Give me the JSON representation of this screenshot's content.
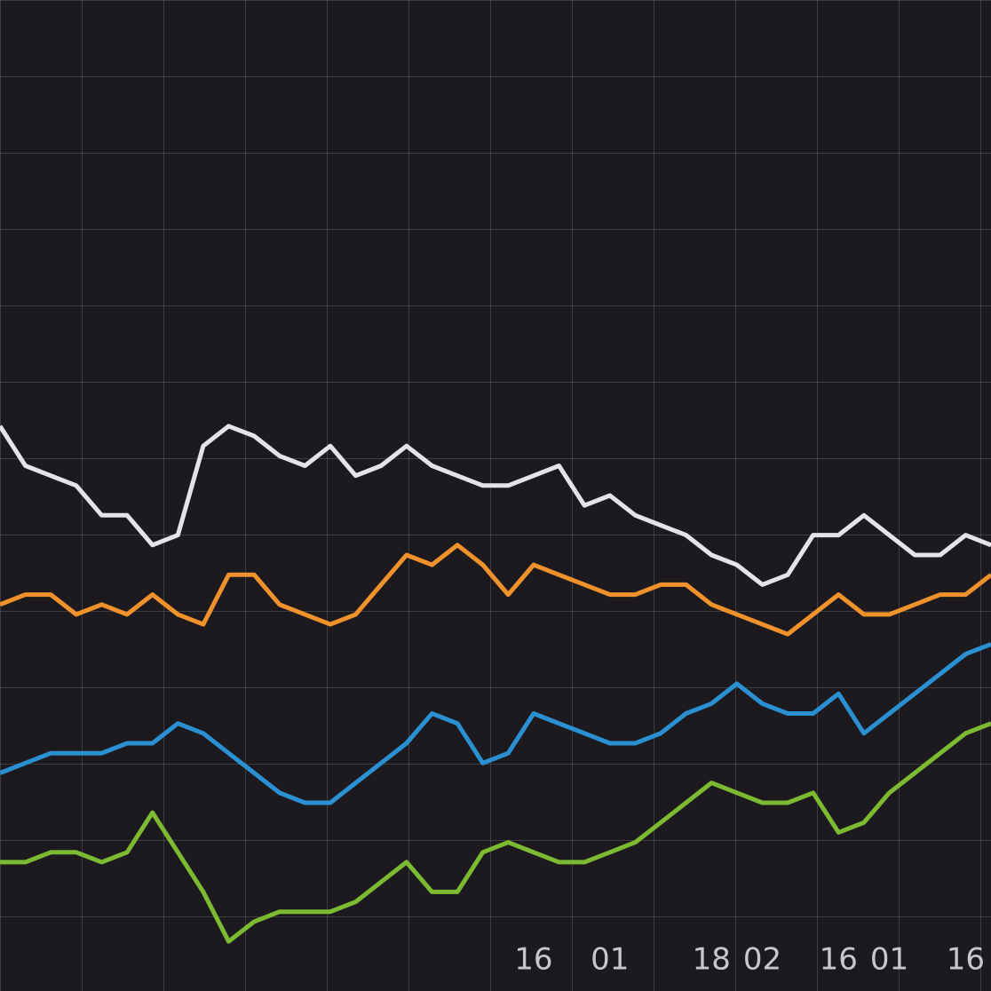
{
  "chart_data": {
    "type": "line",
    "categories": [
      null,
      null,
      null,
      null,
      null,
      null,
      null,
      null,
      null,
      null,
      null,
      null,
      null,
      null,
      null,
      null,
      null,
      null,
      null,
      null,
      null,
      "16",
      null,
      null,
      "01",
      null,
      null,
      null,
      "18",
      null,
      "02",
      null,
      null,
      "16",
      null,
      "01",
      null,
      null,
      "16",
      null
    ],
    "series": [
      {
        "color": "#e6e2ec",
        "values": [
          57,
          53,
          52,
          51,
          48,
          48,
          45,
          46,
          55,
          57,
          56,
          54,
          53,
          55,
          52,
          53,
          55,
          53,
          52,
          51,
          51,
          52,
          53,
          49,
          50,
          48,
          47,
          46,
          44,
          43,
          41,
          42,
          46,
          46,
          48,
          46,
          44,
          44,
          46,
          45
        ]
      },
      {
        "color": "#f0922c",
        "values": [
          39,
          40,
          40,
          38,
          39,
          38,
          40,
          38,
          37,
          42,
          42,
          39,
          38,
          37,
          38,
          41,
          44,
          43,
          45,
          43,
          40,
          43,
          42,
          41,
          40,
          40,
          41,
          41,
          39,
          38,
          37,
          36,
          38,
          40,
          38,
          38,
          39,
          40,
          40,
          42
        ]
      },
      {
        "color": "#2a90d2",
        "values": [
          22,
          23,
          24,
          24,
          24,
          25,
          25,
          27,
          26,
          24,
          22,
          20,
          19,
          19,
          21,
          23,
          25,
          28,
          27,
          23,
          24,
          28,
          27,
          26,
          25,
          25,
          26,
          28,
          29,
          31,
          29,
          28,
          28,
          30,
          26,
          28,
          30,
          32,
          34,
          35
        ]
      },
      {
        "color": "#7cba32",
        "values": [
          13,
          13,
          14,
          14,
          13,
          14,
          18,
          14,
          10,
          5,
          7,
          8,
          8,
          8,
          9,
          11,
          13,
          10,
          10,
          14,
          15,
          14,
          13,
          13,
          14,
          15,
          17,
          19,
          21,
          20,
          19,
          19,
          20,
          16,
          17,
          20,
          22,
          24,
          26,
          27
        ]
      }
    ],
    "ylim": [
      0,
      100
    ]
  }
}
